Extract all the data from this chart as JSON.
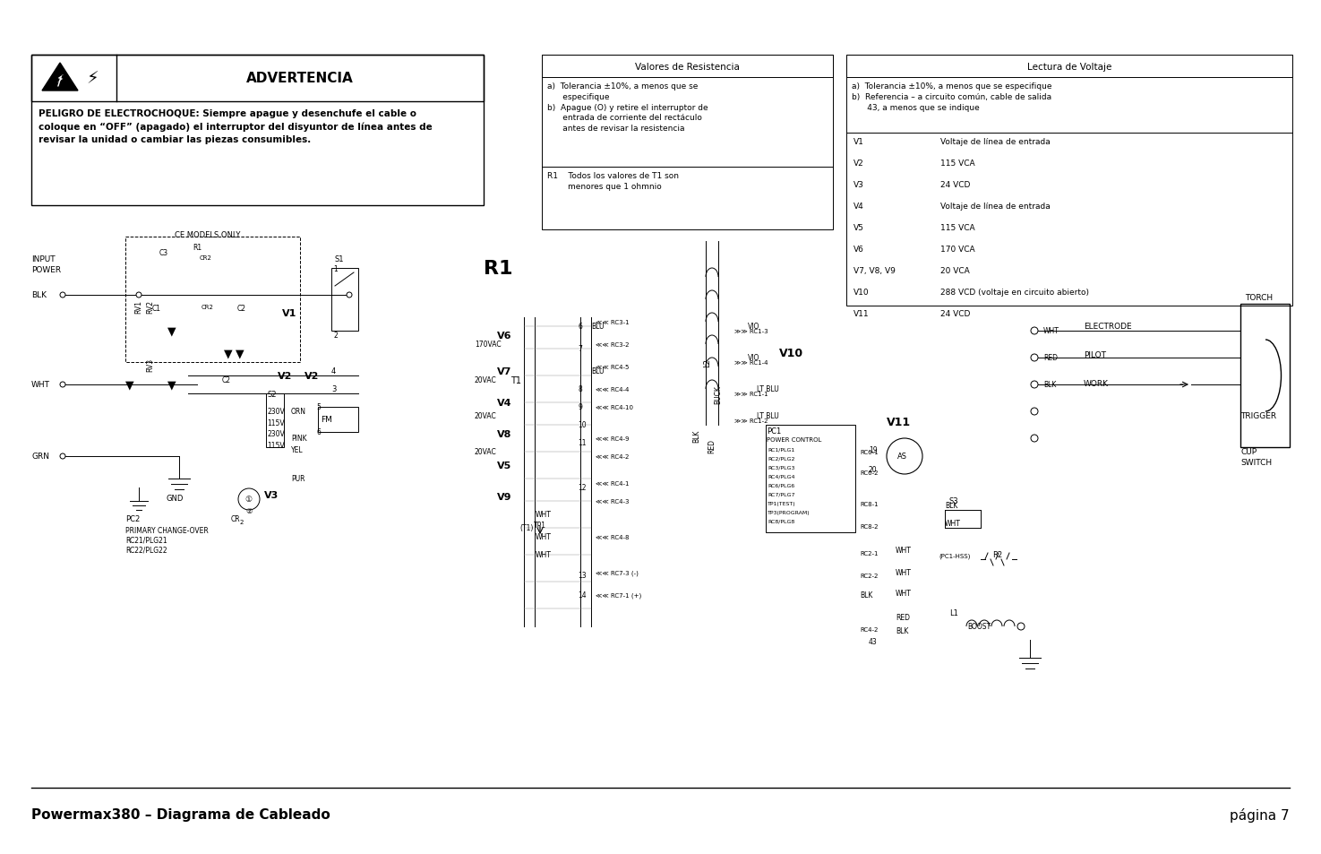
{
  "page_title": "Powermax380 – Diagrama de Cableado",
  "page_number": "página 7",
  "bg_color": "#ffffff",
  "warning_title": "ADVERTENCIA",
  "warning_body": "PELIGRO DE ELECTROCHOQUE: Siempre apague y desenchufe el cable o\ncoloque en “OFF” (apagado) el interruptor del disyuntor de línea antes de\nrevisar la unidad o cambiar las piezas consumibles.",
  "res_title": "Valores de Resistencia",
  "res_body_a": "a)  Tolerancia ±10%, a menos que se\n      especifique",
  "res_body_b": "b)  Apague (O) y retire el interruptor de\n      entrada de corriente del rectáculo\n      antes de revisar la resistencia",
  "res_r1": "R1    Todos los valores de T1 son\n        menores que 1 ohmnio",
  "volt_title": "Lectura de Voltaje",
  "volt_a": "a)  Tolerancia ±10%, a menos que se especifique",
  "volt_b": "b)  Referencia – a circuito común, cable de salida\n      43, a menos que se indique",
  "voltages": [
    [
      "V1",
      "Voltaje de línea de entrada"
    ],
    [
      "V2",
      "115 VCA"
    ],
    [
      "V3",
      "24 VCD"
    ],
    [
      "V4",
      "Voltaje de línea de entrada"
    ],
    [
      "V5",
      "115 VCA"
    ],
    [
      "V6",
      "170 VCA"
    ],
    [
      "V7, V8, V9",
      "20 VCA"
    ],
    [
      "V10",
      "288 VCD (voltaje en circuito abierto)"
    ],
    [
      "V11",
      "24 VCD"
    ]
  ]
}
